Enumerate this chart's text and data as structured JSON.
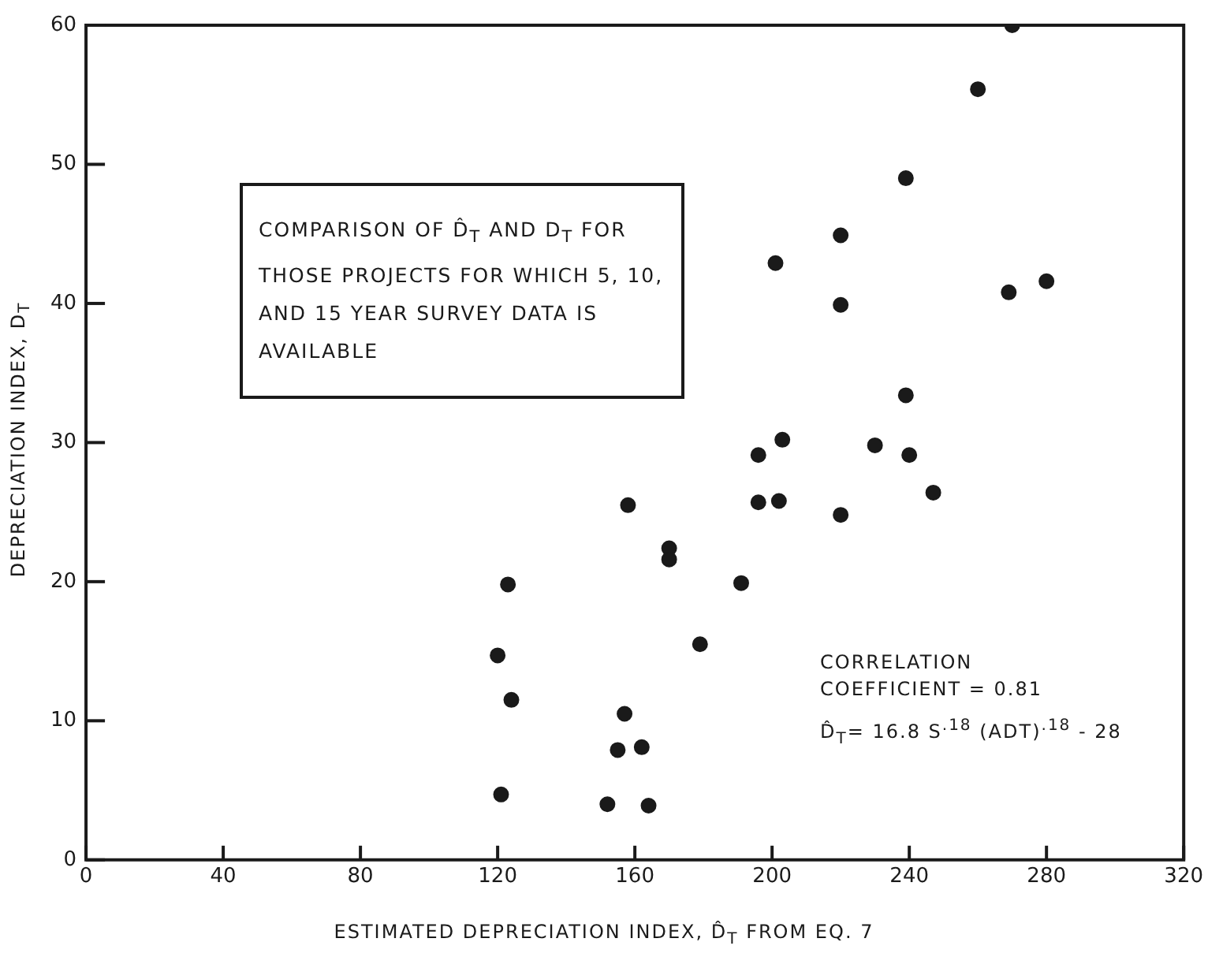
{
  "chart_data": {
    "type": "scatter",
    "xlabel": "ESTIMATED DEPRECIATION INDEX, D̂$_{T}$ FROM EQ. 7",
    "ylabel": "DEPRECIATION INDEX, D$_{T}$",
    "annotations": [
      "COMPARISON OF D̂$_{T}$ AND D$_{T}$ FOR THOSE PROJECTS FOR WHICH 5, 10, AND 15 YEAR SURVEY DATA IS AVAILABLE",
      "CORRELATION COEFFICIENT = 0.81",
      "D̂$_{T}$= 16.8 S$^{.18}$ (ADT)$^{.18}$ - 28"
    ],
    "x": [
      270,
      260,
      239,
      220,
      201,
      220,
      269,
      280,
      239,
      196,
      203,
      230,
      240,
      196,
      202,
      247,
      220,
      158,
      170,
      170,
      191,
      179,
      157,
      155,
      162,
      152,
      164,
      123,
      120,
      124,
      121
    ],
    "series": [
      {
        "color": "#1a1a1a",
        "values": [
          60,
          55.4,
          49,
          44.9,
          42.9,
          39.9,
          40.8,
          41.6,
          33.4,
          29.1,
          30.2,
          29.8,
          29.1,
          25.7,
          25.8,
          26.4,
          24.8,
          25.5,
          22.4,
          21.6,
          19.9,
          15.5,
          10.5,
          7.9,
          8.1,
          4,
          3.9,
          19.8,
          14.7,
          11.5,
          4.7
        ]
      }
    ],
    "xlim": [
      0,
      320
    ],
    "xticks": [
      0,
      40,
      80,
      120,
      160,
      200,
      240,
      280,
      320
    ],
    "ylim": [
      0,
      60
    ],
    "yticks": [
      0,
      10,
      20,
      30,
      40,
      50,
      60
    ],
    "grid": false,
    "legend": false,
    "marker": "circle"
  }
}
